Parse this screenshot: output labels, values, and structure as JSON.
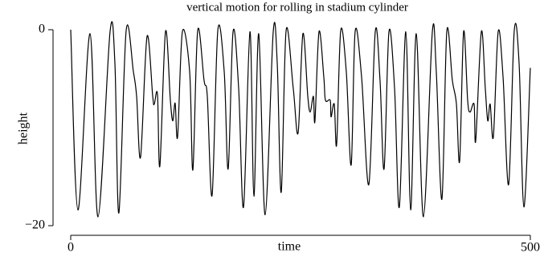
{
  "chart_data": {
    "type": "line",
    "title": "vertical motion for rolling in stadium cylinder",
    "x_label": "time",
    "y_label": "height",
    "xlim": [
      0,
      500
    ],
    "xticks": [
      0,
      500
    ],
    "ylim": [
      -20,
      0
    ],
    "yticks": [
      0,
      {
        "value": -20,
        "label": "−20"
      }
    ],
    "x": [
      0,
      7.9,
      21.0,
      29.7,
      42.8,
      48.1,
      52.4,
      60.3,
      68.2,
      71.7,
      76.0,
      83.0,
      89.2,
      90.9,
      94.4,
      97.0,
      103.1,
      108.4,
      111.0,
      113.6,
      116.3,
      121.5,
      129.4,
      132.9,
      138.1,
      145.1,
      148.6,
      153.8,
      160.0,
      167.0,
      171.3,
      176.6,
      182.7,
      188.0,
      195.0,
      199.3,
      204.5,
      211.5,
      220.3,
      224.7,
      229.0,
      234.3,
      242.1,
      247.4,
      252.6,
      257.9,
      260.5,
      264.0,
      265.7,
      270.1,
      275.3,
      277.1,
      282.3,
      283.2,
      286.7,
      289.3,
      293.7,
      299.8,
      305.1,
      309.4,
      316.4,
      324.3,
      331.3,
      336.5,
      340.9,
      346.2,
      352.3,
      357.5,
      364.5,
      369.8,
      375.9,
      383.7,
      393.4,
      397.7,
      403.8,
      409.1,
      415.2,
      419.6,
      423.1,
      427.4,
      431.8,
      434.4,
      438.8,
      440.6,
      446.7,
      451.0,
      453.7,
      456.3,
      459.8,
      465.0,
      470.3,
      476.4,
      482.5,
      487.8,
      493.0,
      500
    ],
    "series": [
      {
        "color": "#000000",
        "values": [
          0,
          -18.4,
          -0.4,
          -19.1,
          -0.2,
          -3.5,
          -18.7,
          -0.1,
          -4.3,
          -6.8,
          -13.0,
          -0.7,
          -6.8,
          -7.6,
          -6.6,
          -13.9,
          -0.2,
          -7.2,
          -9.3,
          -7.5,
          -10.9,
          -0.2,
          -4.3,
          -14.3,
          -0.1,
          -5.2,
          -6.8,
          -16.9,
          -0.1,
          -4.3,
          -14.2,
          -0.2,
          -6.0,
          -18.1,
          -0.2,
          -17.0,
          -0.4,
          -18.9,
          -0.2,
          -3.5,
          -16.6,
          -0.1,
          -6.0,
          -10.5,
          -0.4,
          -6.8,
          -8.4,
          -6.8,
          -9.3,
          -0.2,
          -4.8,
          -7.2,
          -7.2,
          -8.9,
          -7.6,
          -11.7,
          -0.1,
          -4.3,
          -13.8,
          -0.2,
          -4.8,
          -15.8,
          -0.2,
          -5.2,
          -14.2,
          -0.2,
          -6.0,
          -18.1,
          -0.2,
          -18.4,
          -0.4,
          -19.1,
          -0.2,
          -4.3,
          -17.3,
          -0.2,
          -5.2,
          -7.6,
          -13.4,
          -0.2,
          -7.2,
          -8.4,
          -7.6,
          -11.3,
          -0.2,
          -6.0,
          -9.3,
          -7.6,
          -10.9,
          -0.2,
          -4.8,
          -15.8,
          -0.1,
          -3.5,
          -18.1,
          -3.9
        ]
      }
    ]
  }
}
